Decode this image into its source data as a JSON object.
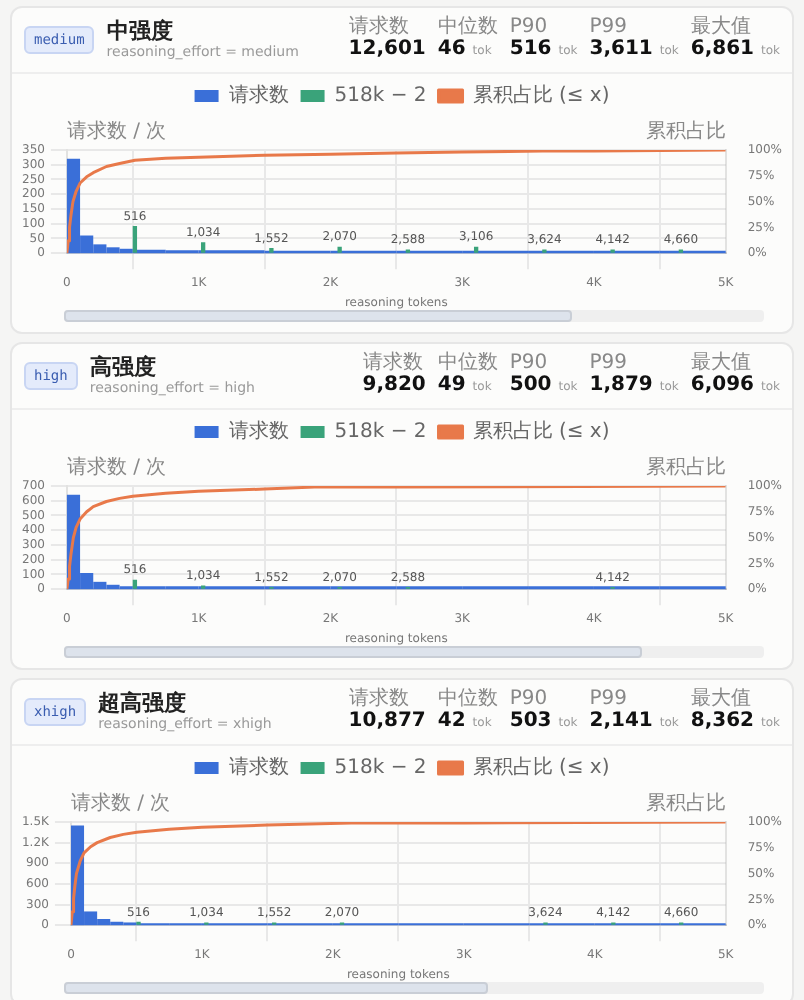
{
  "chart_data": [
    {
      "type": "histogram",
      "title": "中强度",
      "subtitle": "reasoning_effort = medium",
      "xlabel": "reasoning tokens",
      "ylabel": "请求数 / 次",
      "y2label": "累积占比",
      "annotations": [
        "medium",
        "请求数",
        "12,601",
        "中位数",
        "46 tok",
        "P90",
        "516 tok",
        "P99",
        "3,611 tok",
        "最大值",
        "6,861 tok",
        {
          "text": "516",
          "x": 516,
          "y": 90
        },
        {
          "text": "1,034",
          "x": 1034,
          "y": 35
        },
        {
          "text": "1,552",
          "x": 1552,
          "y": 15
        },
        {
          "text": "2,070",
          "x": 2070,
          "y": 20
        },
        {
          "text": "2,588",
          "x": 2588,
          "y": 10
        },
        {
          "text": "3,106",
          "x": 3106,
          "y": 20
        },
        {
          "text": "3,624",
          "x": 3624,
          "y": 10
        },
        {
          "text": "4,142",
          "x": 4142,
          "y": 10
        },
        {
          "text": "4,660",
          "x": 4660,
          "y": 10
        }
      ],
      "bins": [
        0,
        100,
        200,
        300,
        400,
        500,
        750,
        1000,
        1500,
        2000,
        2500,
        3000,
        3500,
        4000,
        4500,
        5000
      ],
      "series": [
        {
          "name": "请求数",
          "color": "#3a6fd8",
          "values": [
            320,
            60,
            30,
            20,
            15,
            12,
            10,
            10,
            8,
            8,
            8,
            8,
            8,
            8,
            8
          ]
        },
        {
          "name": "518k − 2",
          "type": "bar",
          "color": "#3aa37a",
          "x": [
            516,
            1034,
            1552,
            2070,
            2588,
            3106,
            3624,
            4142,
            4660
          ],
          "values": [
            90,
            35,
            15,
            20,
            10,
            20,
            10,
            10,
            10
          ]
        },
        {
          "name": "累积占比 (≤ x)",
          "type": "line",
          "axis": "y2",
          "color": "#e8794a",
          "x": [
            0,
            10,
            20,
            30,
            46,
            70,
            100,
            150,
            200,
            300,
            400,
            516,
            750,
            1000,
            1500,
            2000,
            2500,
            3000,
            3611,
            4000,
            5000
          ],
          "values": [
            0,
            12,
            25,
            36,
            50,
            60,
            68,
            74,
            78,
            84,
            87,
            90,
            92,
            93,
            95,
            96,
            97,
            98,
            99,
            99,
            100
          ]
        }
      ],
      "xlim": [
        0,
        5000
      ],
      "xticks": [
        {
          "value": 0,
          "label": "0"
        },
        {
          "value": 1000,
          "label": "1K"
        },
        {
          "value": 2000,
          "label": "2K"
        },
        {
          "value": 3000,
          "label": "3K"
        },
        {
          "value": 4000,
          "label": "4K"
        },
        {
          "value": 5000,
          "label": "5K"
        }
      ],
      "ylim": [
        0,
        350
      ],
      "yticks": [
        {
          "value": 0,
          "label": "0"
        },
        50,
        100,
        150,
        200,
        250,
        300,
        350
      ],
      "y2lim": [
        0,
        100
      ],
      "y2ticks": [
        {
          "value": 0,
          "label": "0%"
        },
        {
          "value": 25,
          "label": "25%"
        },
        {
          "value": 50,
          "label": "50%"
        },
        {
          "value": 75,
          "label": "75%"
        },
        {
          "value": 100,
          "label": "100%"
        }
      ],
      "grid": true,
      "legend": "top"
    },
    {
      "type": "histogram",
      "title": "高强度",
      "subtitle": "reasoning_effort = high",
      "xlabel": "reasoning tokens",
      "ylabel": "请求数 / 次",
      "y2label": "累积占比",
      "annotations": [
        "high",
        "请求数",
        "9,820",
        "中位数",
        "49 tok",
        "P90",
        "500 tok",
        "P99",
        "1,879 tok",
        "最大值",
        "6,096 tok",
        {
          "text": "516",
          "x": 516,
          "y": 60
        },
        {
          "text": "1,034",
          "x": 1034,
          "y": 20
        },
        {
          "text": "1,552",
          "x": 1552,
          "y": 10
        },
        {
          "text": "2,070",
          "x": 2070,
          "y": 10
        },
        {
          "text": "2,588",
          "x": 2588,
          "y": 10
        },
        {
          "text": "4,142",
          "x": 4142,
          "y": 10
        }
      ],
      "bins": [
        0,
        100,
        200,
        300,
        400,
        500,
        750,
        1000,
        1500,
        2000,
        2500,
        3000,
        3500,
        4000,
        4500,
        5000
      ],
      "series": [
        {
          "name": "请求数",
          "color": "#3a6fd8",
          "values": [
            640,
            110,
            50,
            30,
            20,
            20,
            20,
            20,
            20,
            20,
            20,
            20,
            20,
            20,
            20
          ]
        },
        {
          "name": "518k − 2",
          "type": "bar",
          "color": "#3aa37a",
          "x": [
            516,
            1034,
            1552,
            2070,
            2588,
            4142
          ],
          "values": [
            60,
            20,
            10,
            10,
            10,
            10
          ]
        },
        {
          "name": "累积占比 (≤ x)",
          "type": "line",
          "axis": "y2",
          "color": "#e8794a",
          "x": [
            0,
            10,
            20,
            30,
            49,
            70,
            100,
            150,
            200,
            300,
            400,
            500,
            750,
            1000,
            1500,
            1879,
            2500,
            5000
          ],
          "values": [
            0,
            10,
            22,
            33,
            50,
            60,
            68,
            75,
            80,
            85,
            88,
            90,
            93,
            95,
            97,
            99,
            99,
            100
          ]
        }
      ],
      "xlim": [
        0,
        5000
      ],
      "xticks": [
        {
          "value": 0,
          "label": "0"
        },
        {
          "value": 1000,
          "label": "1K"
        },
        {
          "value": 2000,
          "label": "2K"
        },
        {
          "value": 3000,
          "label": "3K"
        },
        {
          "value": 4000,
          "label": "4K"
        },
        {
          "value": 5000,
          "label": "5K"
        }
      ],
      "ylim": [
        0,
        700
      ],
      "yticks": [
        {
          "value": 0,
          "label": "0"
        },
        100,
        200,
        300,
        400,
        500,
        600,
        700
      ],
      "y2lim": [
        0,
        100
      ],
      "y2ticks": [
        {
          "value": 0,
          "label": "0%"
        },
        {
          "value": 25,
          "label": "25%"
        },
        {
          "value": 50,
          "label": "50%"
        },
        {
          "value": 75,
          "label": "75%"
        },
        {
          "value": 100,
          "label": "100%"
        }
      ],
      "grid": true,
      "legend": "top"
    },
    {
      "type": "histogram",
      "title": "超高强度",
      "subtitle": "reasoning_effort = xhigh",
      "xlabel": "reasoning tokens",
      "ylabel": "请求数 / 次",
      "y2label": "累积占比",
      "annotations": [
        "xhigh",
        "请求数",
        "10,877",
        "中位数",
        "42 tok",
        "P90",
        "503 tok",
        "P99",
        "2,141 tok",
        "最大值",
        "8,362 tok",
        {
          "text": "516",
          "x": 516,
          "y": 40
        },
        {
          "text": "1,034",
          "x": 1034,
          "y": 30
        },
        {
          "text": "1,552",
          "x": 1552,
          "y": 30
        },
        {
          "text": "2,070",
          "x": 2070,
          "y": 30
        },
        {
          "text": "3,624",
          "x": 3624,
          "y": 30
        },
        {
          "text": "4,142",
          "x": 4142,
          "y": 30
        },
        {
          "text": "4,660",
          "x": 4660,
          "y": 30
        }
      ],
      "bins": [
        0,
        100,
        200,
        300,
        400,
        500,
        750,
        1000,
        1500,
        2000,
        2500,
        3000,
        3500,
        4000,
        4500,
        5000
      ],
      "series": [
        {
          "name": "请求数",
          "color": "#3a6fd8",
          "values": [
            1450,
            200,
            90,
            50,
            40,
            30,
            30,
            30,
            30,
            30,
            30,
            30,
            30,
            30,
            30
          ]
        },
        {
          "name": "518k − 2",
          "type": "bar",
          "color": "#3aa37a",
          "x": [
            516,
            1034,
            1552,
            2070,
            3624,
            4142,
            4660
          ],
          "values": [
            40,
            30,
            30,
            30,
            30,
            30,
            30
          ]
        },
        {
          "name": "累积占比 (≤ x)",
          "type": "line",
          "axis": "y2",
          "color": "#e8794a",
          "x": [
            0,
            10,
            20,
            30,
            42,
            70,
            100,
            150,
            200,
            300,
            400,
            503,
            750,
            1000,
            1500,
            2141,
            3000,
            5000
          ],
          "values": [
            0,
            13,
            26,
            38,
            50,
            62,
            70,
            76,
            80,
            85,
            88,
            90,
            93,
            95,
            97,
            99,
            99,
            100
          ]
        }
      ],
      "xlim": [
        0,
        5000
      ],
      "xticks": [
        {
          "value": 0,
          "label": "0"
        },
        {
          "value": 1000,
          "label": "1K"
        },
        {
          "value": 2000,
          "label": "2K"
        },
        {
          "value": 3000,
          "label": "3K"
        },
        {
          "value": 4000,
          "label": "4K"
        },
        {
          "value": 5000,
          "label": "5K"
        }
      ],
      "ylim": [
        0,
        1500
      ],
      "yticks": [
        {
          "value": 0,
          "label": "0"
        },
        300,
        600,
        900,
        {
          "value": 1200,
          "label": "1.2K"
        },
        {
          "value": 1500,
          "label": "1.5K"
        }
      ],
      "y2lim": [
        0,
        100
      ],
      "y2ticks": [
        {
          "value": 0,
          "label": "0%"
        },
        {
          "value": 25,
          "label": "25%"
        },
        {
          "value": 50,
          "label": "50%"
        },
        {
          "value": 75,
          "label": "75%"
        },
        {
          "value": 100,
          "label": "100%"
        }
      ],
      "grid": true,
      "legend": "top"
    }
  ]
}
